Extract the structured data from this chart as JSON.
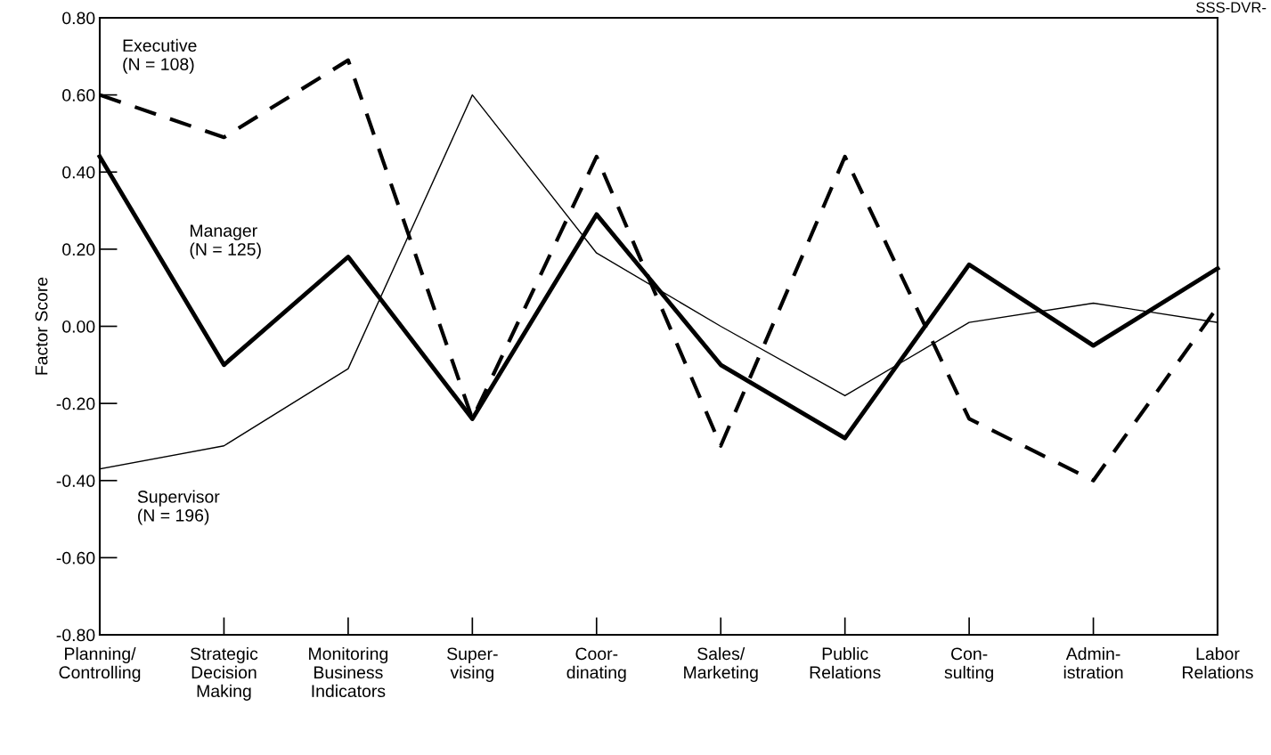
{
  "chart_data": {
    "type": "line",
    "ylabel": "Factor Score",
    "categories": [
      "Planning/\nControlling",
      "Strategic\nDecision\nMaking",
      "Monitoring\nBusiness\nIndicators",
      "Super-\nvising",
      "Coor-\ndinating",
      "Sales/\nMarketing",
      "Public\nRelations",
      "Con-\nsulting",
      "Admin-\nistration",
      "Labor\nRelations"
    ],
    "series": [
      {
        "name": "Executive\n(N = 108)",
        "color": "#000000",
        "line_style": "dashed",
        "values": [
          0.6,
          0.49,
          0.69,
          -0.24,
          0.44,
          -0.31,
          0.44,
          -0.24,
          -0.4,
          0.05
        ]
      },
      {
        "name": "Manager\n(N = 125)",
        "color": "#000000",
        "line_style": "solid",
        "values": [
          0.44,
          -0.1,
          0.18,
          -0.24,
          0.29,
          -0.1,
          -0.29,
          0.16,
          -0.05,
          0.15
        ]
      },
      {
        "name": "Supervisor\n(N = 196)",
        "color": "#000000",
        "line_style": "solid",
        "values": [
          -0.37,
          -0.31,
          -0.11,
          0.6,
          0.19,
          0.0,
          -0.18,
          0.01,
          0.06,
          0.01
        ]
      }
    ],
    "ylim": [
      -0.8,
      0.8
    ],
    "yticks": [
      {
        "value": -0.8,
        "label": "-0.80"
      },
      {
        "value": -0.6,
        "label": "-0.60"
      },
      {
        "value": -0.4,
        "label": "-0.40"
      },
      {
        "value": -0.2,
        "label": "-0.20"
      },
      {
        "value": 0,
        "label": "0.00"
      },
      {
        "value": 0.2,
        "label": "0.20"
      },
      {
        "value": 0.4,
        "label": "0.40"
      },
      {
        "value": 0.6,
        "label": "0.60"
      },
      {
        "value": 0.8,
        "label": "0.80"
      }
    ],
    "grid": false,
    "legend": false,
    "marker": "none",
    "annotations": [
      "SSS-DVR-"
    ]
  }
}
